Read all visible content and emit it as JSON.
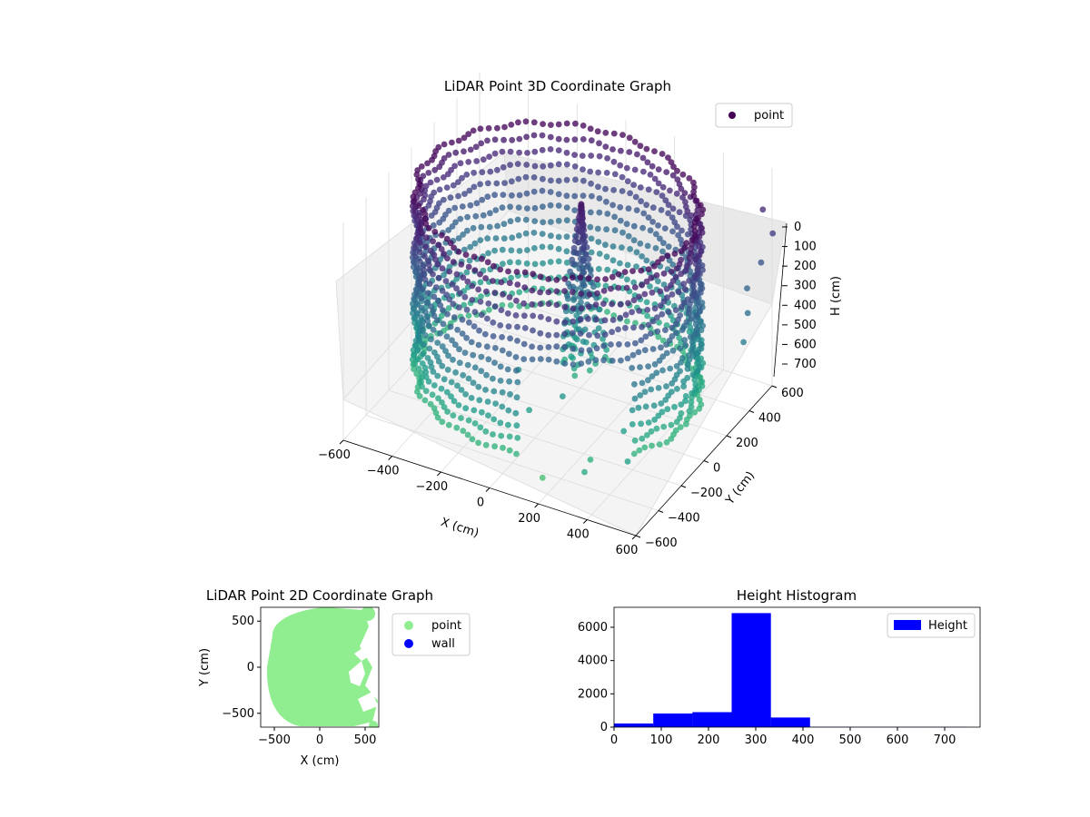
{
  "chart_data": [
    {
      "type": "scatter3d",
      "title": "LiDAR Point 3D Coordinate Graph",
      "xlabel": "X (cm)",
      "ylabel": "Y (cm)",
      "zlabel": "H (cm)",
      "xticks": [
        "−600",
        "−400",
        "−200",
        "0",
        "200",
        "400",
        "600"
      ],
      "yticks": [
        "−600",
        "−400",
        "−200",
        "0",
        "200",
        "400",
        "600"
      ],
      "zticks": [
        "0",
        "100",
        "200",
        "300",
        "400",
        "500",
        "600",
        "700"
      ],
      "xlim": [
        -600,
        600
      ],
      "ylim": [
        -600,
        600
      ],
      "zlim": [
        0,
        750
      ],
      "zaxis_inverted": true,
      "colormap": "viridis",
      "legend": {
        "label": "point",
        "position": "top-right",
        "color": "#440154"
      },
      "grid": true,
      "structure": {
        "ring_radius_cm": 600,
        "ring_height_range_cm": [
          0,
          700
        ],
        "inner_cluster_center_cm": [
          50,
          100
        ],
        "outliers": [
          [
            590,
            540,
            120
          ],
          [
            640,
            520,
            180
          ],
          [
            620,
            460,
            260
          ],
          [
            600,
            380,
            320
          ],
          [
            640,
            300,
            360
          ],
          [
            660,
            220,
            420
          ],
          [
            420,
            -320,
            560
          ],
          [
            330,
            -420,
            640
          ],
          [
            180,
            -520,
            700
          ],
          [
            380,
            -580,
            600
          ],
          [
            520,
            -500,
            560
          ],
          [
            160,
            -300,
            520
          ],
          [
            60,
            -380,
            560
          ],
          [
            -40,
            -260,
            500
          ]
        ]
      }
    },
    {
      "type": "scatter",
      "title": "LiDAR Point 2D Coordinate Graph",
      "xlabel": "X (cm)",
      "ylabel": "Y (cm)",
      "xticks": [
        "−500",
        "0",
        "500"
      ],
      "yticks": [
        "500",
        "0",
        "−500"
      ],
      "xlim": [
        -650,
        650
      ],
      "ylim": [
        -650,
        650
      ],
      "series": [
        {
          "name": "point",
          "color": "#90ee90"
        },
        {
          "name": "wall",
          "color": "#0000ff"
        }
      ],
      "legend": "outside-right"
    },
    {
      "type": "bar",
      "title": "Height Histogram",
      "xticks": [
        "0",
        "100",
        "200",
        "300",
        "400",
        "500",
        "600",
        "700"
      ],
      "yticks": [
        "0",
        "2000",
        "4000",
        "6000"
      ],
      "xlim": [
        0,
        775
      ],
      "ylim": [
        0,
        7200
      ],
      "bin_edges": [
        0,
        83,
        166,
        249,
        332,
        415,
        498,
        581,
        664,
        747
      ],
      "values": [
        220,
        820,
        900,
        6850,
        580,
        15,
        10,
        10,
        10
      ],
      "series": [
        {
          "name": "Height",
          "color": "#0000ff"
        }
      ],
      "legend": "top-right"
    }
  ]
}
